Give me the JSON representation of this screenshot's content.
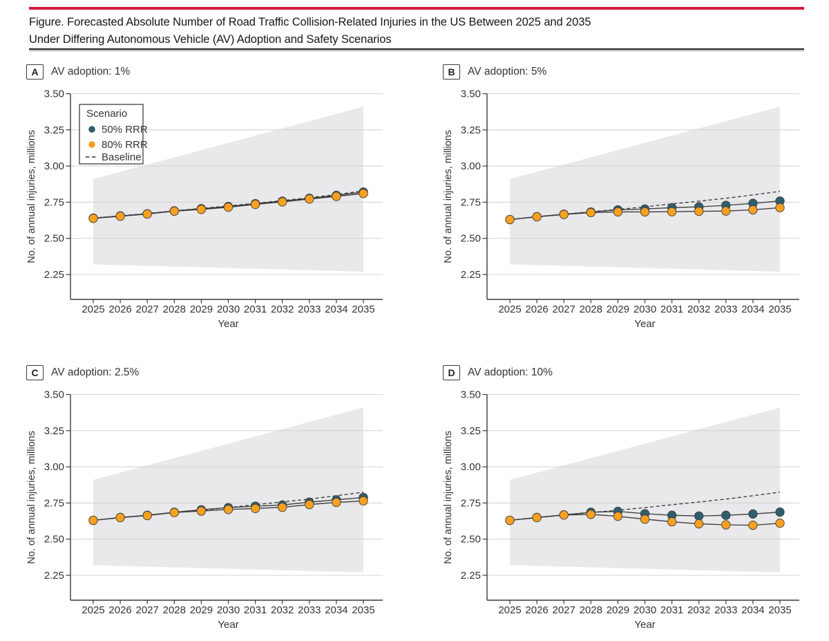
{
  "title": {
    "line1": "Figure. Forecasted Absolute Number of Road Traffic Collision-Related Injuries in the US Between 2025 and 2035",
    "line2": "Under Differing Autonomous Vehicle (AV) Adoption and Safety Scenarios"
  },
  "colors": {
    "accent_red": "#D5193C",
    "teal": "#2F5E6E",
    "orange": "#F8A01F",
    "line": "#3A3A3A",
    "grid": "#D4D4D4",
    "band": "#E9E9EB",
    "axis": "#3A3A3A",
    "text": "#333333"
  },
  "legend": {
    "title": "Scenario",
    "items": [
      {
        "label": "50% RRR",
        "swatch": "dot",
        "color": "#2F5E6E"
      },
      {
        "label": "80% RRR",
        "swatch": "dot",
        "color": "#F8A01F"
      },
      {
        "label": "Baseline",
        "swatch": "dashed-line",
        "color": "#3A3A3A"
      }
    ]
  },
  "axes": {
    "ylabel": "No. of annual injuries, millions",
    "xlabel": "Year",
    "ytick_values": [
      3.5,
      3.25,
      3.0,
      2.75,
      2.5,
      2.25
    ],
    "ytick_labels": [
      "3.50",
      "3.25",
      "3.00",
      "2.75",
      "2.50",
      "2.25"
    ],
    "xtick_values": [
      2025,
      2026,
      2027,
      2028,
      2029,
      2030,
      2031,
      2032,
      2033,
      2034,
      2035
    ],
    "ylim": [
      2.08,
      3.5
    ],
    "grid": "horizontal"
  },
  "chart_data": [
    {
      "panel": "A",
      "title": "AV adoption: 1%",
      "type": "line",
      "x": [
        2025,
        2026,
        2027,
        2028,
        2029,
        2030,
        2031,
        2032,
        2033,
        2034,
        2035
      ],
      "series": [
        {
          "name": "50% RRR",
          "marker": "dot",
          "color": "#2F5E6E",
          "values": [
            2.64,
            2.655,
            2.67,
            2.69,
            2.705,
            2.72,
            2.74,
            2.757,
            2.777,
            2.797,
            2.82
          ]
        },
        {
          "name": "80% RRR",
          "marker": "dot",
          "color": "#F8A01F",
          "values": [
            2.638,
            2.653,
            2.668,
            2.688,
            2.7,
            2.715,
            2.735,
            2.752,
            2.772,
            2.79,
            2.81
          ]
        },
        {
          "name": "Baseline",
          "style": "dashed",
          "color": "#3A3A3A",
          "values": [
            2.64,
            2.656,
            2.672,
            2.69,
            2.707,
            2.724,
            2.742,
            2.761,
            2.781,
            2.803,
            2.828
          ]
        }
      ],
      "ci_band": {
        "x": [
          2025,
          2035
        ],
        "lower": [
          2.32,
          2.27
        ],
        "upper": [
          2.91,
          3.41
        ]
      },
      "show_legend": true
    },
    {
      "panel": "B",
      "title": "AV adoption: 5%",
      "type": "line",
      "x": [
        2025,
        2026,
        2027,
        2028,
        2029,
        2030,
        2031,
        2032,
        2033,
        2034,
        2035
      ],
      "series": [
        {
          "name": "50% RRR",
          "marker": "dot",
          "color": "#2F5E6E",
          "values": [
            2.63,
            2.65,
            2.667,
            2.682,
            2.697,
            2.703,
            2.712,
            2.718,
            2.728,
            2.742,
            2.758
          ]
        },
        {
          "name": "80% RRR",
          "marker": "dot",
          "color": "#F8A01F",
          "values": [
            2.63,
            2.649,
            2.665,
            2.678,
            2.683,
            2.683,
            2.684,
            2.687,
            2.689,
            2.697,
            2.712
          ]
        },
        {
          "name": "Baseline",
          "style": "dashed",
          "color": "#3A3A3A",
          "values": [
            2.63,
            2.648,
            2.666,
            2.684,
            2.7,
            2.718,
            2.738,
            2.757,
            2.777,
            2.8,
            2.825
          ]
        }
      ],
      "ci_band": {
        "x": [
          2025,
          2035
        ],
        "lower": [
          2.32,
          2.27
        ],
        "upper": [
          2.91,
          3.41
        ]
      },
      "show_legend": false
    },
    {
      "panel": "C",
      "title": "AV adoption: 2.5%",
      "type": "line",
      "x": [
        2025,
        2026,
        2027,
        2028,
        2029,
        2030,
        2031,
        2032,
        2033,
        2034,
        2035
      ],
      "series": [
        {
          "name": "50% RRR",
          "marker": "dot",
          "color": "#2F5E6E",
          "values": [
            2.63,
            2.65,
            2.665,
            2.686,
            2.703,
            2.718,
            2.728,
            2.736,
            2.756,
            2.772,
            2.788
          ]
        },
        {
          "name": "80% RRR",
          "marker": "dot",
          "color": "#F8A01F",
          "values": [
            2.63,
            2.649,
            2.663,
            2.684,
            2.694,
            2.705,
            2.712,
            2.72,
            2.739,
            2.754,
            2.765
          ]
        },
        {
          "name": "Baseline",
          "style": "dashed",
          "color": "#3A3A3A",
          "values": [
            2.63,
            2.648,
            2.666,
            2.684,
            2.7,
            2.718,
            2.738,
            2.757,
            2.777,
            2.8,
            2.825
          ]
        }
      ],
      "ci_band": {
        "x": [
          2025,
          2035
        ],
        "lower": [
          2.32,
          2.27
        ],
        "upper": [
          2.91,
          3.41
        ]
      },
      "show_legend": false
    },
    {
      "panel": "D",
      "title": "AV adoption: 10%",
      "type": "line",
      "x": [
        2025,
        2026,
        2027,
        2028,
        2029,
        2030,
        2031,
        2032,
        2033,
        2034,
        2035
      ],
      "series": [
        {
          "name": "50% RRR",
          "marker": "dot",
          "color": "#2F5E6E",
          "values": [
            2.63,
            2.65,
            2.668,
            2.686,
            2.692,
            2.676,
            2.665,
            2.66,
            2.665,
            2.674,
            2.687
          ]
        },
        {
          "name": "80% RRR",
          "marker": "dot",
          "color": "#F8A01F",
          "values": [
            2.63,
            2.649,
            2.667,
            2.671,
            2.658,
            2.638,
            2.62,
            2.606,
            2.599,
            2.596,
            2.61
          ]
        },
        {
          "name": "Baseline",
          "style": "dashed",
          "color": "#3A3A3A",
          "values": [
            2.63,
            2.648,
            2.666,
            2.684,
            2.7,
            2.718,
            2.738,
            2.757,
            2.777,
            2.8,
            2.825
          ]
        }
      ],
      "ci_band": {
        "x": [
          2025,
          2035
        ],
        "lower": [
          2.32,
          2.27
        ],
        "upper": [
          2.91,
          3.41
        ]
      },
      "show_legend": false
    }
  ]
}
